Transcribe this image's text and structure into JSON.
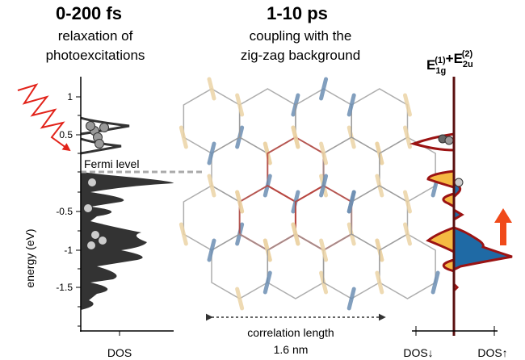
{
  "left_panel": {
    "title": "0-200 fs",
    "subtitle_lines": [
      "relaxation of",
      "photoexcitations"
    ],
    "axis_label": "energy (eV)",
    "tick_labels": [
      "1",
      "0.5",
      "-0.5",
      "-1",
      "-1.5"
    ],
    "fermi_label": "Fermi level",
    "x_label": "DOS"
  },
  "middle_panel": {
    "title": "1-10 ps",
    "subtitle_lines": [
      "coupling with the",
      "zig-zag background"
    ],
    "scale_lines": [
      "correlation length",
      "1.6 nm"
    ]
  },
  "right_panel": {
    "title_terms": [
      {
        "base": "E",
        "sub": "1g",
        "sup": "(1)"
      },
      {
        "base": "+E",
        "sub": "2u",
        "sup": "(2)"
      }
    ],
    "x_labels": [
      "DOS↓",
      "DOS↑"
    ]
  }
}
